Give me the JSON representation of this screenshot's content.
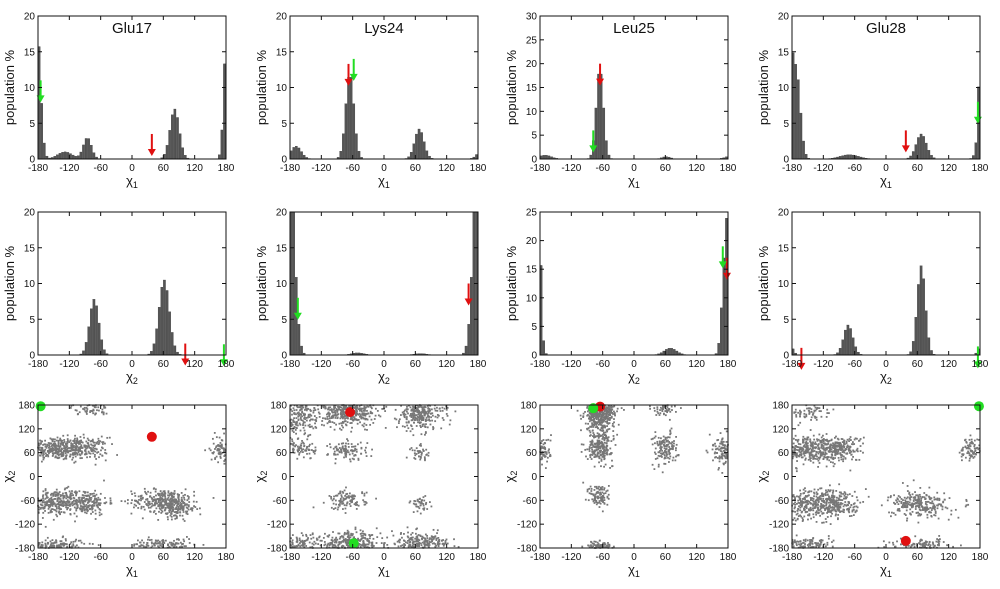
{
  "figure": {
    "ylabel_hist": "population %",
    "xlabel_chi1": "χ",
    "xlabel_chi2": "χ",
    "sub1": "1",
    "sub2": "2",
    "colors": {
      "bar": "#555555",
      "scatter": "#777777",
      "red": "#e01010",
      "green": "#22dd22",
      "axis": "#111111"
    }
  },
  "chart_data": [
    {
      "type": "bar",
      "panel": "glu17-chi1",
      "title": "Glu17",
      "xlabel": "χ1",
      "ylabel": "population %",
      "xlim": [
        -180,
        180
      ],
      "ylim": [
        0,
        20
      ],
      "xticks": [
        -180,
        -120,
        -60,
        0,
        60,
        120,
        180
      ],
      "yticks": [
        0,
        5,
        10,
        15,
        20
      ],
      "peaks": [
        [
          -178,
          10,
          6
        ],
        [
          -128,
          1,
          14
        ],
        [
          -85,
          3,
          8
        ],
        [
          82,
          7,
          9
        ],
        [
          180,
          7,
          4
        ]
      ],
      "arrows": [
        {
          "color": "red",
          "x": 38,
          "y": 3.5
        },
        {
          "color": "green",
          "x": -175,
          "y": 11
        }
      ]
    },
    {
      "type": "bar",
      "panel": "lys24-chi1",
      "title": "Lys24",
      "xlabel": "χ1",
      "ylabel": "population %",
      "xlim": [
        -180,
        180
      ],
      "ylim": [
        0,
        20
      ],
      "xticks": [
        -180,
        -120,
        -60,
        0,
        60,
        120,
        180
      ],
      "yticks": [
        0,
        5,
        10,
        15,
        20
      ],
      "peaks": [
        [
          -168,
          1.8,
          10
        ],
        [
          -65,
          12,
          8
        ],
        [
          68,
          4.2,
          9
        ]
      ],
      "arrows": [
        {
          "color": "red",
          "x": -68,
          "y": 13.3
        },
        {
          "color": "green",
          "x": -58,
          "y": 14
        }
      ]
    },
    {
      "type": "bar",
      "panel": "leu25-chi1",
      "title": "Leu25",
      "xlabel": "χ1",
      "ylabel": "population %",
      "xlim": [
        -180,
        180
      ],
      "ylim": [
        0,
        30
      ],
      "xticks": [
        -180,
        -120,
        -60,
        0,
        60,
        120,
        180
      ],
      "yticks": [
        0,
        5,
        10,
        15,
        20,
        25,
        30
      ],
      "peaks": [
        [
          -170,
          0.8,
          12
        ],
        [
          -65,
          19,
          7
        ],
        [
          62,
          0.5,
          8
        ]
      ],
      "arrows": [
        {
          "color": "red",
          "x": -65,
          "y": 20
        },
        {
          "color": "green",
          "x": -78,
          "y": 6
        }
      ]
    },
    {
      "type": "bar",
      "panel": "glu28-chi1",
      "title": "Glu28",
      "xlabel": "χ1",
      "ylabel": "population %",
      "xlim": [
        -180,
        180
      ],
      "ylim": [
        0,
        20
      ],
      "xticks": [
        -180,
        -120,
        -60,
        0,
        60,
        120,
        180
      ],
      "yticks": [
        0,
        5,
        10,
        15,
        20
      ],
      "peaks": [
        [
          -172,
          13,
          8
        ],
        [
          -70,
          0.6,
          18
        ],
        [
          68,
          3.5,
          10
        ],
        [
          180,
          6.5,
          3
        ]
      ],
      "arrows": [
        {
          "color": "red",
          "x": 38,
          "y": 4
        },
        {
          "color": "green",
          "x": 176,
          "y": 8
        }
      ]
    },
    {
      "type": "bar",
      "panel": "glu17-chi2",
      "title": "",
      "xlabel": "χ2",
      "ylabel": "population %",
      "xlim": [
        -180,
        180
      ],
      "ylim": [
        0,
        20
      ],
      "xticks": [
        -180,
        -120,
        -60,
        0,
        60,
        120,
        180
      ],
      "yticks": [
        0,
        5,
        10,
        15,
        20
      ],
      "peaks": [
        [
          -72,
          7.8,
          9
        ],
        [
          62,
          10.5,
          10
        ]
      ],
      "arrows": [
        {
          "color": "red",
          "x": 102,
          "y": 1.6
        },
        {
          "color": "green",
          "x": 176,
          "y": 1.5
        }
      ]
    },
    {
      "type": "bar",
      "panel": "lys24-chi2",
      "title": "",
      "xlabel": "χ2",
      "ylabel": "population %",
      "xlim": [
        -180,
        180
      ],
      "ylim": [
        0,
        20
      ],
      "xticks": [
        -180,
        -120,
        -60,
        0,
        60,
        120,
        180
      ],
      "yticks": [
        0,
        5,
        10,
        15,
        20
      ],
      "peaks": [
        [
          -180,
          14,
          9
        ],
        [
          180,
          14.5,
          9
        ],
        [
          -50,
          0.3,
          12
        ],
        [
          70,
          0.2,
          12
        ]
      ],
      "arrows": [
        {
          "color": "red",
          "x": 162,
          "y": 10
        },
        {
          "color": "green",
          "x": -165,
          "y": 8
        }
      ]
    },
    {
      "type": "bar",
      "panel": "leu25-chi2",
      "title": "",
      "xlabel": "χ2",
      "ylabel": "population %",
      "xlim": [
        -180,
        180
      ],
      "ylim": [
        0,
        25
      ],
      "xticks": [
        -180,
        -120,
        -60,
        0,
        60,
        120,
        180
      ],
      "yticks": [
        0,
        5,
        10,
        15,
        20,
        25
      ],
      "peaks": [
        [
          -180,
          10.5,
          3
        ],
        [
          70,
          1.2,
          12
        ],
        [
          175,
          18,
          6
        ]
      ],
      "arrows": [
        {
          "color": "red",
          "x": 178,
          "y": 17
        },
        {
          "color": "green",
          "x": 170,
          "y": 19
        }
      ]
    },
    {
      "type": "bar",
      "panel": "glu28-chi2",
      "title": "",
      "xlabel": "χ2",
      "ylabel": "population %",
      "xlim": [
        -180,
        180
      ],
      "ylim": [
        0,
        20
      ],
      "xticks": [
        -180,
        -120,
        -60,
        0,
        60,
        120,
        180
      ],
      "yticks": [
        0,
        5,
        10,
        15,
        20
      ],
      "peaks": [
        [
          -180,
          0.6,
          5
        ],
        [
          -72,
          4.2,
          9
        ],
        [
          68,
          12.5,
          8
        ],
        [
          180,
          0.4,
          4
        ]
      ],
      "arrows": [
        {
          "color": "red",
          "x": -162,
          "y": 1
        },
        {
          "color": "green",
          "x": 176,
          "y": 1.2
        }
      ]
    },
    {
      "type": "scatter",
      "panel": "glu17-2d",
      "title": "",
      "xlabel": "χ1",
      "ylabel": "χ2",
      "xlim": [
        -180,
        180
      ],
      "ylim": [
        -180,
        180
      ],
      "xticks": [
        -180,
        -120,
        -60,
        0,
        60,
        120,
        180
      ],
      "yticks": [
        -180,
        -120,
        -60,
        0,
        60,
        120,
        180
      ],
      "clusters": [
        [
          -150,
          70,
          30,
          14,
          320
        ],
        [
          -90,
          70,
          22,
          14,
          180
        ],
        [
          -150,
          -65,
          30,
          16,
          300
        ],
        [
          -90,
          -65,
          22,
          16,
          200
        ],
        [
          60,
          -60,
          30,
          14,
          260
        ],
        [
          85,
          -80,
          20,
          12,
          150
        ],
        [
          -150,
          -172,
          30,
          8,
          140
        ],
        [
          60,
          -172,
          30,
          8,
          120
        ],
        [
          170,
          70,
          10,
          16,
          80
        ],
        [
          -80,
          170,
          18,
          8,
          60
        ]
      ],
      "markers": [
        {
          "color": "red",
          "x": 38,
          "y": 100
        },
        {
          "color": "green",
          "x": -175,
          "y": 177
        }
      ]
    },
    {
      "type": "scatter",
      "panel": "lys24-2d",
      "title": "",
      "xlabel": "χ1",
      "ylabel": "χ2",
      "xlim": [
        -180,
        180
      ],
      "ylim": [
        -180,
        180
      ],
      "xticks": [
        -180,
        -120,
        -60,
        0,
        60,
        120,
        180
      ],
      "yticks": [
        -180,
        -120,
        -60,
        0,
        60,
        120,
        180
      ],
      "clusters": [
        [
          -65,
          165,
          25,
          18,
          420
        ],
        [
          70,
          160,
          22,
          22,
          320
        ],
        [
          -160,
          155,
          25,
          25,
          220
        ],
        [
          -65,
          -170,
          28,
          14,
          320
        ],
        [
          70,
          -170,
          28,
          14,
          260
        ],
        [
          -160,
          -170,
          22,
          14,
          120
        ],
        [
          -70,
          65,
          18,
          12,
          100
        ],
        [
          -160,
          70,
          15,
          14,
          80
        ],
        [
          -70,
          -60,
          18,
          12,
          110
        ],
        [
          70,
          60,
          10,
          10,
          40
        ],
        [
          70,
          -70,
          10,
          10,
          40
        ]
      ],
      "markers": [
        {
          "color": "red",
          "x": -65,
          "y": 162
        },
        {
          "color": "green",
          "x": -58,
          "y": -168
        }
      ]
    },
    {
      "type": "scatter",
      "panel": "leu25-2d",
      "title": "",
      "xlabel": "χ1",
      "ylabel": "χ2",
      "xlim": [
        -180,
        180
      ],
      "ylim": [
        -180,
        180
      ],
      "xticks": [
        -180,
        -120,
        -60,
        0,
        60,
        120,
        180
      ],
      "yticks": [
        -180,
        -120,
        -60,
        0,
        60,
        120,
        180
      ],
      "clusters": [
        [
          -65,
          160,
          14,
          22,
          480
        ],
        [
          -65,
          75,
          12,
          18,
          220
        ],
        [
          60,
          70,
          12,
          22,
          140
        ],
        [
          170,
          65,
          10,
          20,
          120
        ],
        [
          -175,
          65,
          8,
          18,
          80
        ],
        [
          -65,
          -50,
          10,
          16,
          100
        ],
        [
          -65,
          -175,
          12,
          6,
          80
        ],
        [
          60,
          170,
          12,
          8,
          50
        ]
      ],
      "markers": [
        {
          "color": "red",
          "x": -65,
          "y": 176
        },
        {
          "color": "green",
          "x": -78,
          "y": 172
        }
      ]
    },
    {
      "type": "scatter",
      "panel": "glu28-2d",
      "title": "",
      "xlabel": "χ1",
      "ylabel": "χ2",
      "xlim": [
        -180,
        180
      ],
      "ylim": [
        -180,
        180
      ],
      "xticks": [
        -180,
        -120,
        -60,
        0,
        60,
        120,
        180
      ],
      "yticks": [
        -180,
        -120,
        -60,
        0,
        60,
        120,
        180
      ],
      "clusters": [
        [
          -150,
          70,
          30,
          16,
          330
        ],
        [
          -90,
          70,
          22,
          16,
          200
        ],
        [
          -150,
          -70,
          30,
          20,
          300
        ],
        [
          -90,
          -70,
          22,
          18,
          200
        ],
        [
          65,
          -70,
          28,
          16,
          260
        ],
        [
          65,
          -172,
          30,
          8,
          130
        ],
        [
          -150,
          -172,
          25,
          8,
          120
        ],
        [
          165,
          70,
          12,
          16,
          90
        ],
        [
          -150,
          160,
          20,
          10,
          70
        ]
      ],
      "markers": [
        {
          "color": "red",
          "x": 38,
          "y": -162
        },
        {
          "color": "green",
          "x": 178,
          "y": 177
        }
      ]
    }
  ]
}
